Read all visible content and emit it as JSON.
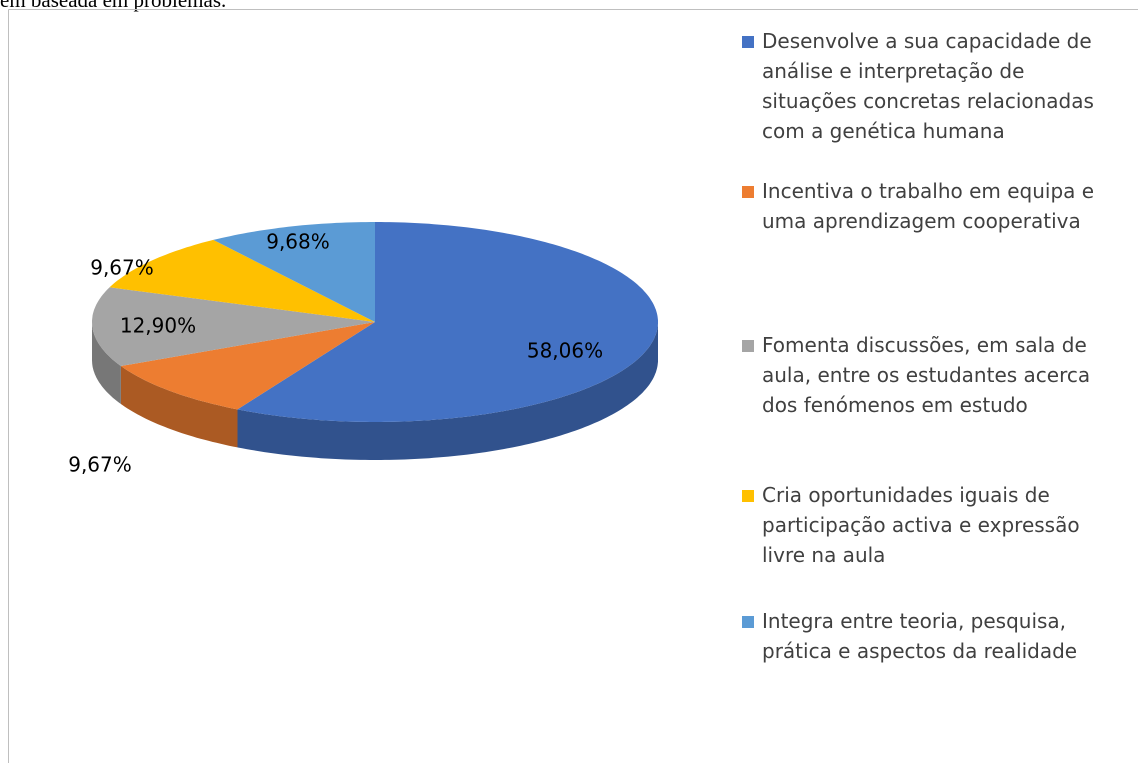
{
  "document_text": "em baseada em problemas.",
  "chart_data": {
    "type": "pie3d",
    "categories": [
      "Desenvolve a sua capacidade de análise e interpretação de situações concretas relacionadas com a genética humana",
      "Incentiva o trabalho em equipa e uma aprendizagem cooperativa",
      "Fomenta discussões, em sala de aula, entre os estudantes acerca dos fenómenos em estudo",
      "Cria oportunidades iguais de participação activa e expressão livre na aula",
      "Integra entre teoria, pesquisa, prática e aspectos da realidade"
    ],
    "values": [
      58.06,
      9.67,
      12.9,
      9.67,
      9.68
    ],
    "value_labels": [
      "58,06%",
      "9,67%",
      "12,90%",
      "9,67%",
      "9,68%"
    ],
    "colors": [
      "#4472c4",
      "#ed7d31",
      "#a5a5a5",
      "#ffc000",
      "#5b9bd5"
    ],
    "legend": "right"
  }
}
